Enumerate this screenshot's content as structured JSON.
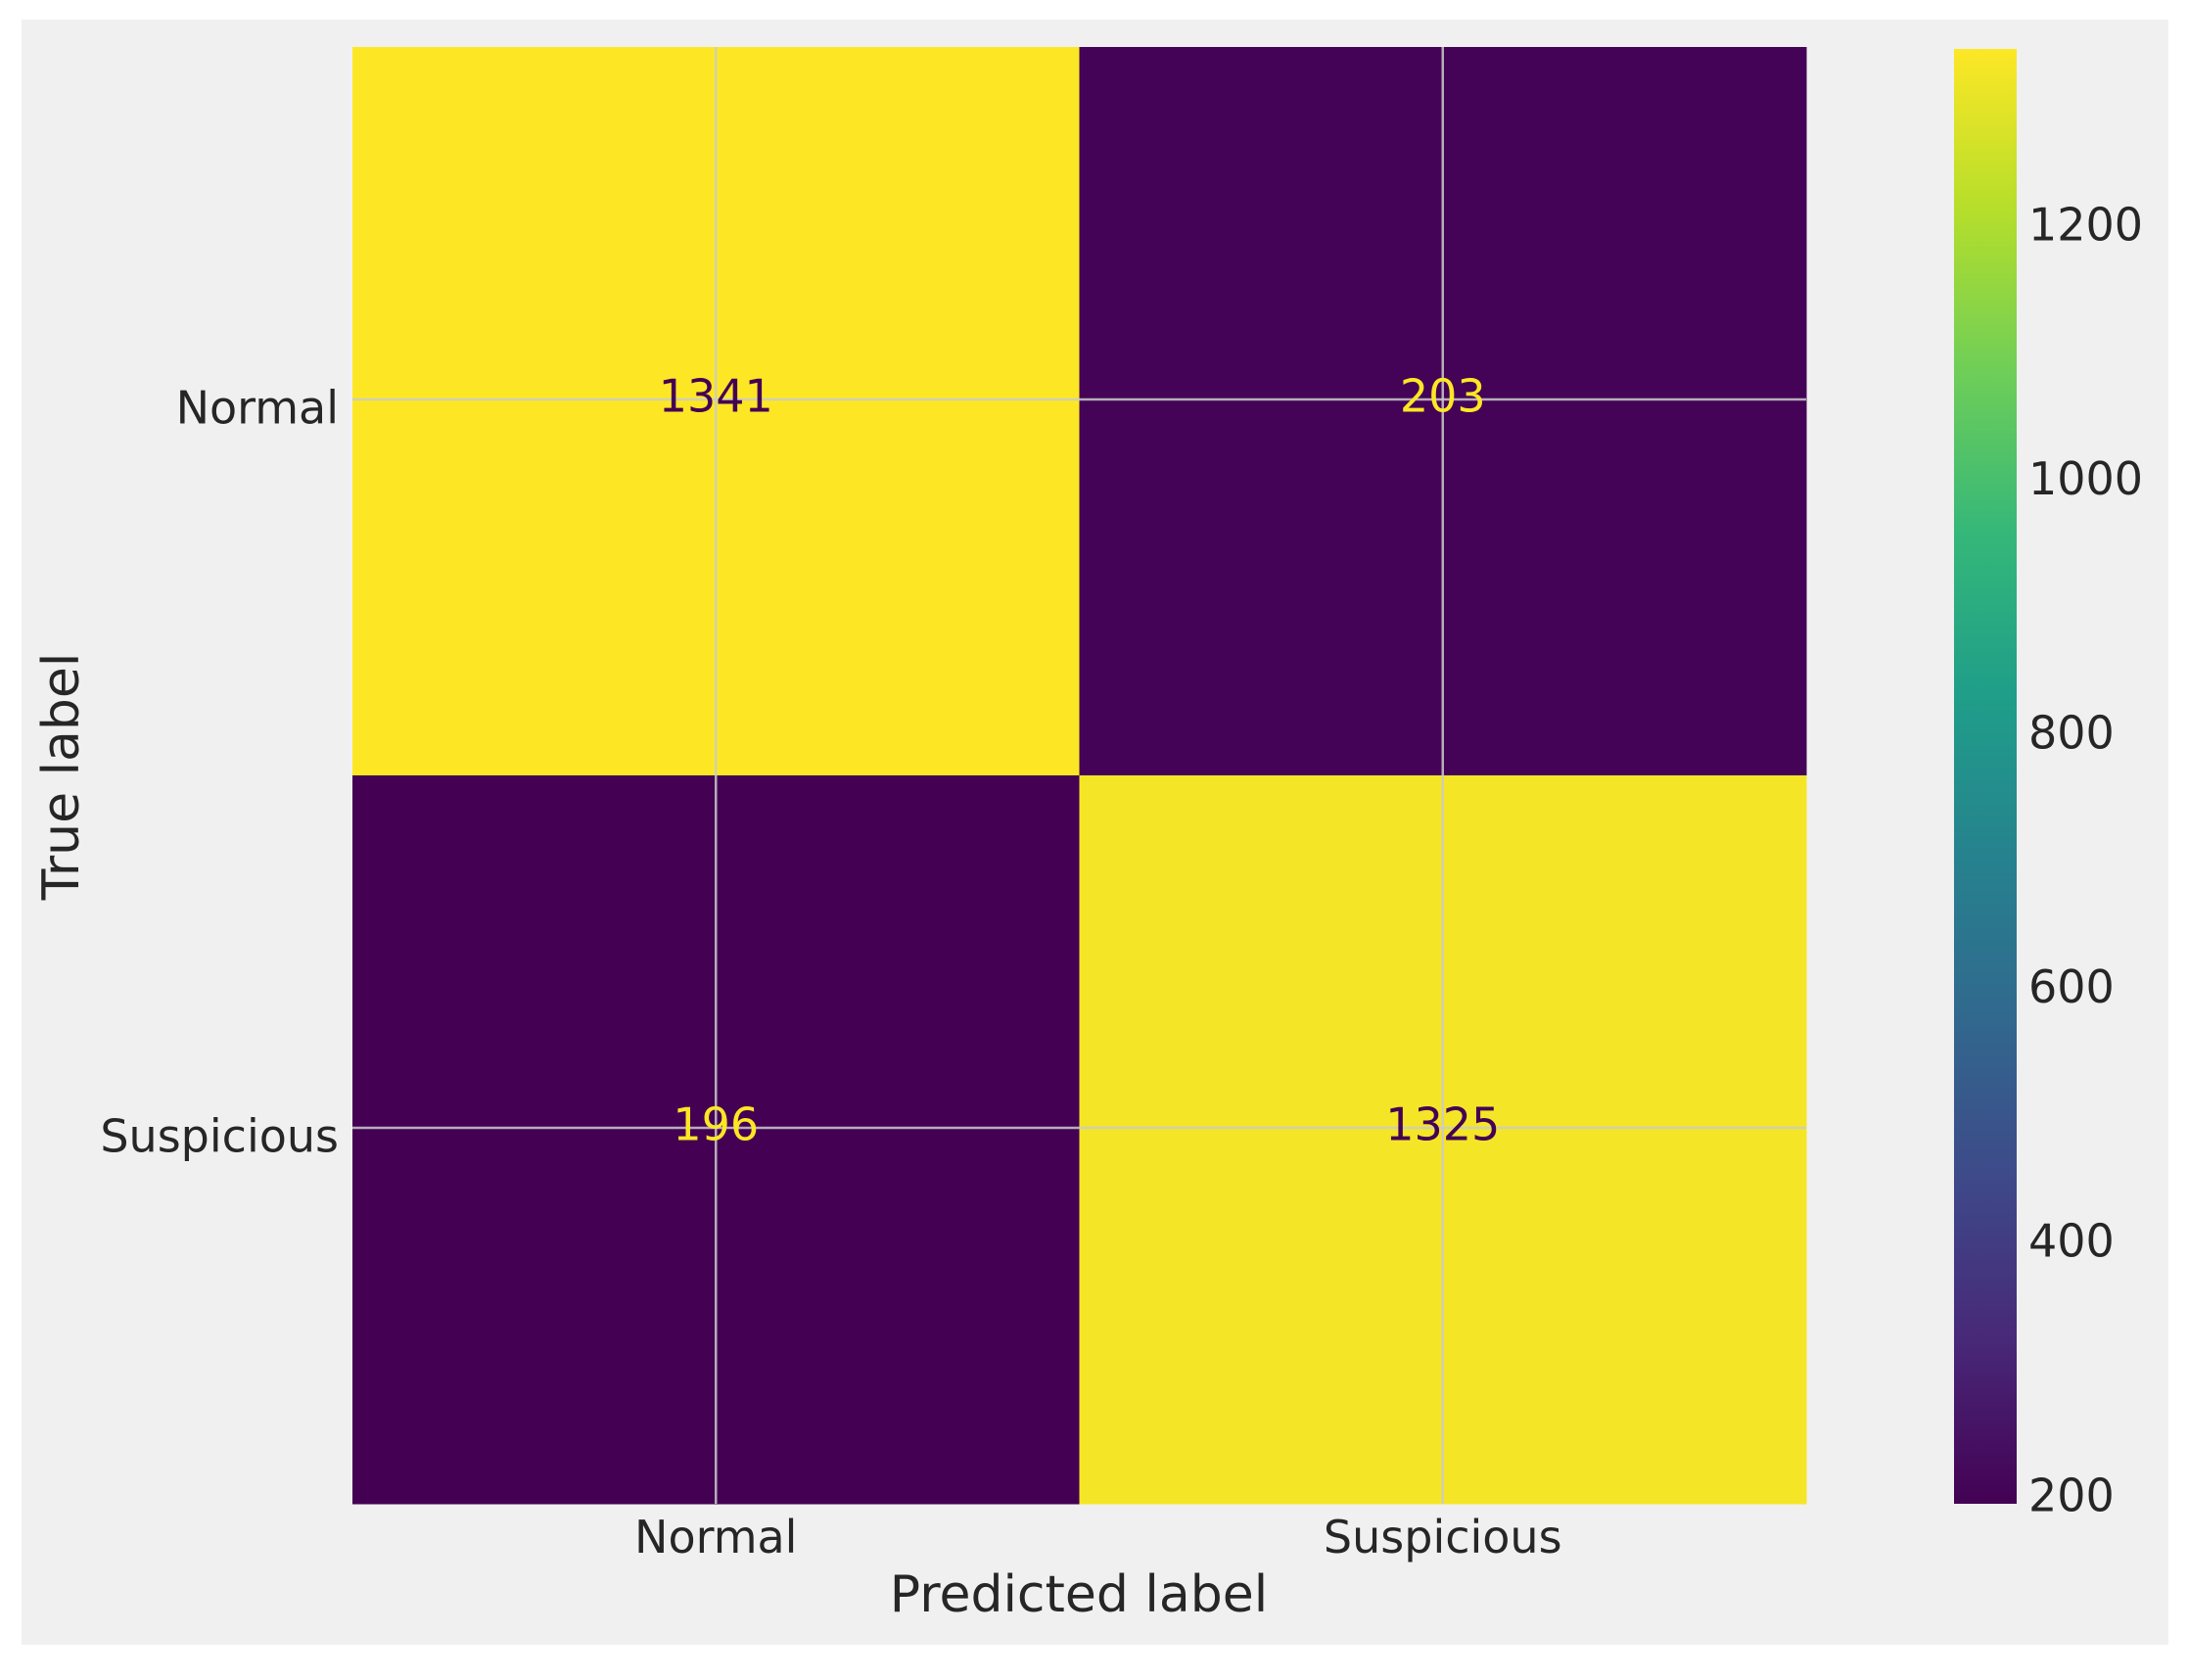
{
  "chart_data": {
    "type": "heatmap",
    "title": "",
    "xlabel": "Predicted label",
    "ylabel": "True label",
    "x_categories": [
      "Normal",
      "Suspicious"
    ],
    "y_categories": [
      "Normal",
      "Suspicious"
    ],
    "values": [
      [
        1341,
        203
      ],
      [
        196,
        1325
      ]
    ],
    "colormap": "viridis",
    "colorbar": {
      "range": [
        196,
        1341
      ],
      "ticks": [
        {
          "value": 200,
          "label": "200"
        },
        {
          "value": 400,
          "label": "400"
        },
        {
          "value": 600,
          "label": "600"
        },
        {
          "value": 800,
          "label": "800"
        },
        {
          "value": 1000,
          "label": "1000"
        },
        {
          "value": 1200,
          "label": "1200"
        }
      ]
    },
    "grid": true
  },
  "colors": {
    "figure_bg": "#f0f0f0",
    "grid": "#cbcbcb",
    "text_on_dark": "#fde725",
    "text_on_light": "#440154"
  }
}
